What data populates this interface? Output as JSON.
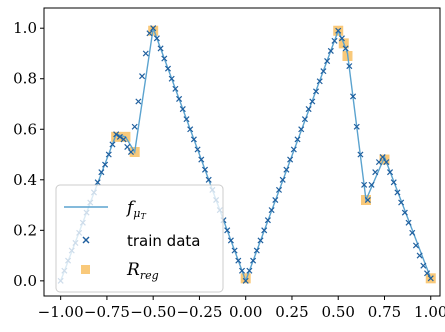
{
  "chart_data": {
    "type": "line",
    "x_ticks": [
      "−1.00",
      "−0.75",
      "−0.50",
      "−0.25",
      "0.00",
      "0.25",
      "0.50",
      "0.75",
      "1.00"
    ],
    "x_tick_values": [
      -1.0,
      -0.75,
      -0.5,
      -0.25,
      0.0,
      0.25,
      0.5,
      0.75,
      1.0
    ],
    "y_ticks": [
      "0.0",
      "0.2",
      "0.4",
      "0.6",
      "0.8",
      "1.0"
    ],
    "y_tick_values": [
      0.0,
      0.2,
      0.4,
      0.6,
      0.8,
      1.0
    ],
    "xlim": [
      -1.09,
      1.05
    ],
    "ylim": [
      -0.06,
      1.08
    ],
    "grid": false,
    "legend_position": "lower-left",
    "colors": {
      "line": "#5ba3cf",
      "train": "#1f5f9e",
      "reg": "#f9c97a"
    },
    "series": [
      {
        "name": "f_{μ_T}",
        "kind": "line",
        "x": [
          -1.0,
          -0.7,
          -0.65,
          -0.6,
          -0.5,
          0.0,
          0.5,
          0.53,
          0.55,
          0.65,
          0.75,
          1.0
        ],
        "y": [
          0.0,
          0.58,
          0.57,
          0.51,
          1.0,
          0.0,
          0.99,
          0.94,
          0.9,
          0.32,
          0.49,
          0.01
        ]
      },
      {
        "name": "train data",
        "kind": "scatter",
        "marker": "x",
        "x": [
          -1.0,
          -0.98,
          -0.96,
          -0.94,
          -0.92,
          -0.9,
          -0.88,
          -0.86,
          -0.84,
          -0.82,
          -0.8,
          -0.78,
          -0.76,
          -0.74,
          -0.72,
          -0.7,
          -0.68,
          -0.66,
          -0.64,
          -0.62,
          -0.6,
          -0.58,
          -0.56,
          -0.54,
          -0.52,
          -0.5,
          -0.48,
          -0.46,
          -0.44,
          -0.42,
          -0.4,
          -0.38,
          -0.36,
          -0.34,
          -0.32,
          -0.3,
          -0.28,
          -0.26,
          -0.24,
          -0.22,
          -0.2,
          -0.18,
          -0.16,
          -0.14,
          -0.12,
          -0.1,
          -0.08,
          -0.06,
          -0.04,
          -0.02,
          0.0,
          0.02,
          0.04,
          0.06,
          0.08,
          0.1,
          0.12,
          0.14,
          0.16,
          0.18,
          0.2,
          0.22,
          0.24,
          0.26,
          0.28,
          0.3,
          0.32,
          0.34,
          0.36,
          0.38,
          0.4,
          0.42,
          0.44,
          0.46,
          0.48,
          0.5,
          0.52,
          0.54,
          0.56,
          0.58,
          0.6,
          0.62,
          0.64,
          0.66,
          0.68,
          0.7,
          0.72,
          0.74,
          0.76,
          0.78,
          0.8,
          0.82,
          0.84,
          0.86,
          0.88,
          0.9,
          0.92,
          0.94,
          0.96,
          0.98,
          1.0
        ],
        "y": [
          0.0,
          0.04,
          0.08,
          0.12,
          0.15,
          0.19,
          0.23,
          0.27,
          0.31,
          0.35,
          0.39,
          0.43,
          0.46,
          0.5,
          0.54,
          0.58,
          0.57,
          0.56,
          0.53,
          0.51,
          0.61,
          0.71,
          0.81,
          0.9,
          0.98,
          1.0,
          0.96,
          0.92,
          0.88,
          0.84,
          0.8,
          0.76,
          0.72,
          0.68,
          0.64,
          0.6,
          0.56,
          0.52,
          0.48,
          0.44,
          0.4,
          0.36,
          0.32,
          0.28,
          0.24,
          0.2,
          0.16,
          0.12,
          0.08,
          0.04,
          0.0,
          0.04,
          0.08,
          0.12,
          0.16,
          0.2,
          0.24,
          0.28,
          0.32,
          0.36,
          0.4,
          0.44,
          0.48,
          0.52,
          0.56,
          0.6,
          0.64,
          0.68,
          0.71,
          0.75,
          0.79,
          0.83,
          0.87,
          0.91,
          0.95,
          0.99,
          0.96,
          0.92,
          0.85,
          0.73,
          0.61,
          0.5,
          0.38,
          0.32,
          0.38,
          0.43,
          0.47,
          0.49,
          0.47,
          0.43,
          0.39,
          0.35,
          0.31,
          0.27,
          0.23,
          0.19,
          0.14,
          0.1,
          0.06,
          0.03,
          0.01
        ]
      },
      {
        "name": "R_{reg}",
        "kind": "scatter",
        "marker": "square",
        "x": [
          -0.7,
          -0.65,
          -0.6,
          -0.5,
          0.0,
          0.5,
          0.53,
          0.55,
          0.65,
          0.75,
          1.0
        ],
        "y": [
          0.57,
          0.57,
          0.51,
          0.99,
          0.01,
          0.99,
          0.94,
          0.89,
          0.32,
          0.48,
          0.01
        ]
      }
    ]
  },
  "legend": {
    "line_main": "f",
    "line_sub": "μ",
    "line_subsub": "T",
    "train_label": "train data",
    "reg_main": "R",
    "reg_sub": "reg"
  }
}
